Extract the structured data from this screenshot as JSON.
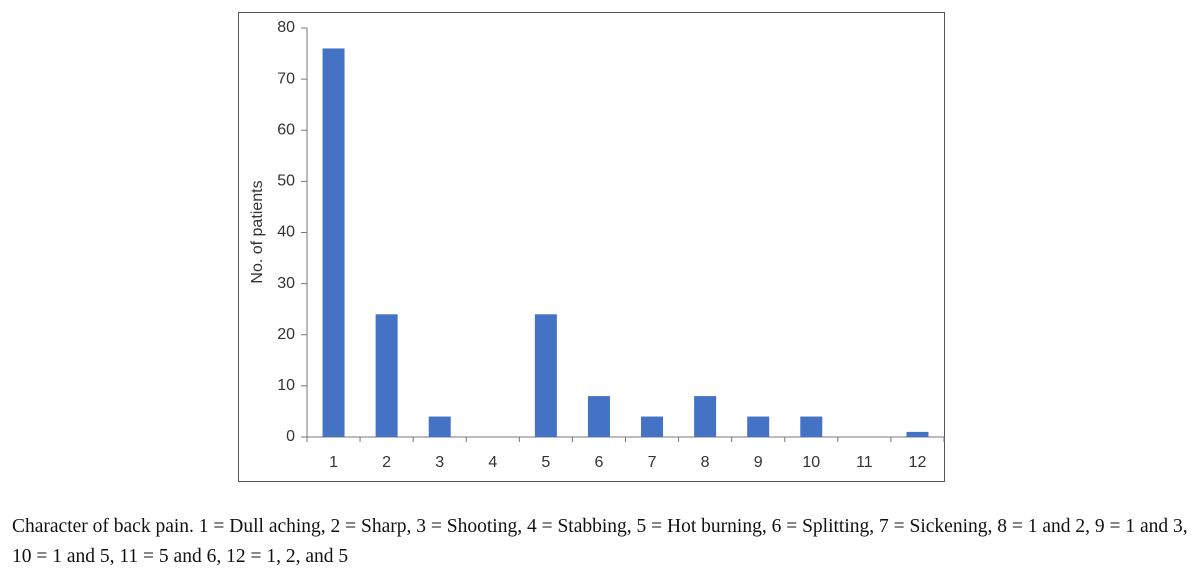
{
  "chart_data": {
    "type": "bar",
    "y_label": "No. of patients",
    "categories": [
      "1",
      "2",
      "3",
      "4",
      "5",
      "6",
      "7",
      "8",
      "9",
      "10",
      "11",
      "12"
    ],
    "values": [
      76,
      24,
      4,
      0,
      24,
      8,
      4,
      8,
      4,
      4,
      0,
      1
    ],
    "color": "#4472c4",
    "ylim": [
      0,
      80
    ],
    "yticks": [
      0,
      10,
      20,
      30,
      40,
      50,
      60,
      70,
      80
    ],
    "grid": false
  },
  "caption": "Character of back pain. 1 = Dull aching, 2 = Sharp, 3 = Shooting, 4 = Stabbing, 5 = Hot burning, 6 = Splitting, 7 = Sickening, 8 = 1 and 2, 9 = 1 and 3, 10 = 1 and 5, 11 = 5 and 6, 12 = 1, 2, and 5"
}
